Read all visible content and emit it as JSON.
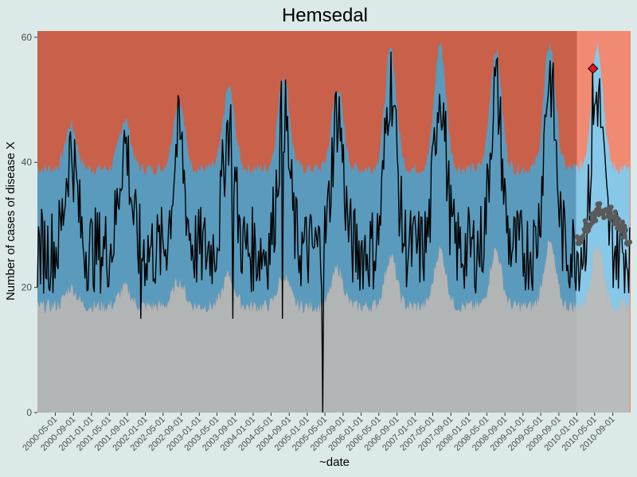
{
  "chart_data": {
    "type": "line",
    "title": "Hemsedal",
    "xlabel": "~date",
    "ylabel": "Number of cases of disease X",
    "ylim": [
      0,
      61
    ],
    "yticks": [
      0,
      20,
      40,
      60
    ],
    "x_range": [
      "2000-01-01",
      "2010-12-31"
    ],
    "forecast_start": "2010-01-01",
    "xticks": [
      "2000-05-01",
      "2000-09-01",
      "2001-01-01",
      "2001-05-01",
      "2001-09-01",
      "2002-01-01",
      "2002-05-01",
      "2002-09-01",
      "2003-01-01",
      "2003-05-01",
      "2003-09-01",
      "2004-01-01",
      "2004-05-01",
      "2004-09-01",
      "2005-01-01",
      "2005-05-01",
      "2005-09-01",
      "2006-01-01",
      "2006-05-01",
      "2006-09-01",
      "2007-01-01",
      "2007-05-01",
      "2007-09-01",
      "2008-01-01",
      "2008-05-01",
      "2008-09-01",
      "2009-01-01",
      "2009-05-01",
      "2009-09-01",
      "2010-01-01",
      "2010-05-01",
      "2010-09-01"
    ],
    "colors": {
      "background": "#dbe9e9",
      "high": "#c9604a",
      "normal": "#5a9bbd",
      "low": "#b2b5b5",
      "high_forecast": "#f08a72",
      "normal_forecast": "#87c8e8",
      "low_forecast": "#b8bcbc",
      "line": "#000000",
      "baseline": "#5a5a5a",
      "alert": "#e8141e"
    },
    "seasonal_peaks": [
      {
        "date": "2000-08-15",
        "upper": 46,
        "lower": 20,
        "peak": 42
      },
      {
        "date": "2001-08-15",
        "upper": 47,
        "lower": 20,
        "peak": 43
      },
      {
        "date": "2002-08-15",
        "upper": 50,
        "lower": 21,
        "peak": 44
      },
      {
        "date": "2003-07-20",
        "upper": 52,
        "lower": 22,
        "peak": 46
      },
      {
        "date": "2004-07-25",
        "upper": 54,
        "lower": 22,
        "peak": 48
      },
      {
        "date": "2005-07-25",
        "upper": 52,
        "lower": 23,
        "peak": 48
      },
      {
        "date": "2006-07-20",
        "upper": 58,
        "lower": 25,
        "peak": 53
      },
      {
        "date": "2007-06-20",
        "upper": 59,
        "lower": 26,
        "peak": 52
      },
      {
        "date": "2008-07-01",
        "upper": 58,
        "lower": 26,
        "peak": 52
      },
      {
        "date": "2009-07-01",
        "upper": 59,
        "lower": 27,
        "peak": 54
      },
      {
        "date": "2010-05-20",
        "upper": 59,
        "lower": 27,
        "peak": 51
      }
    ],
    "seasonal_troughs": {
      "upper": 39,
      "lower": 17,
      "level": 26
    },
    "notable_points": [
      {
        "date": "2005-04-15",
        "value": 0
      },
      {
        "date": "2004-07-15",
        "value": 15
      },
      {
        "date": "2003-08-15",
        "value": 15
      },
      {
        "date": "2001-12-01",
        "value": 15
      }
    ],
    "alert_point": {
      "date": "2010-04-20",
      "value": 55
    },
    "forecast_baseline_range": [
      27,
      33
    ]
  }
}
